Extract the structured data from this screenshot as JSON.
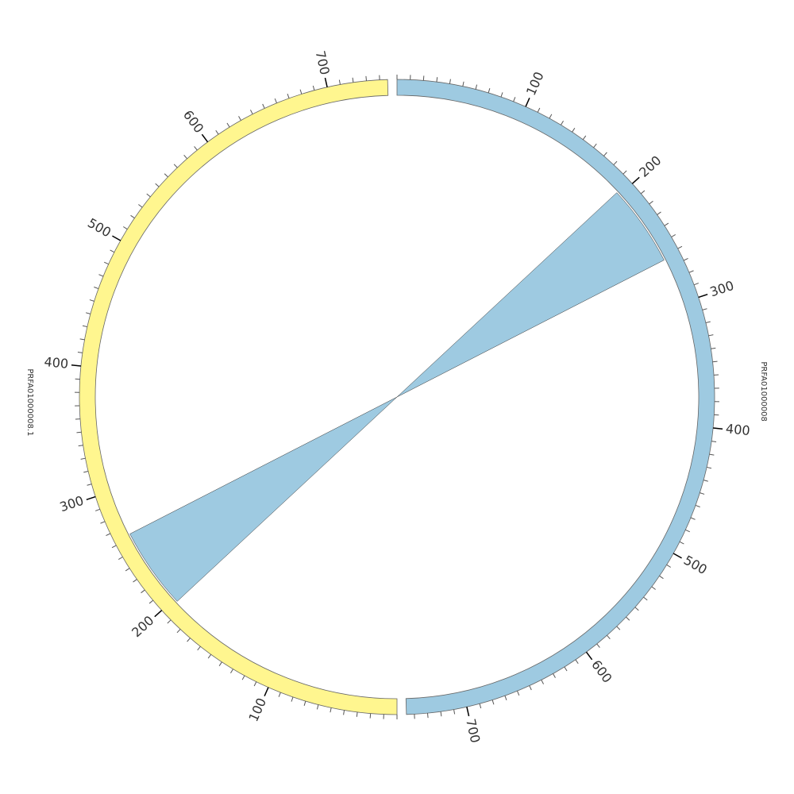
{
  "chart_data": {
    "type": "circos",
    "gap_degrees": 1.7,
    "minor_tick_interval": 10,
    "segments": [
      {
        "name": "PRFA01000008",
        "length": 746,
        "color": "#9ecae1",
        "ticks": [
          100,
          200,
          300,
          400,
          500,
          600,
          700
        ]
      },
      {
        "name": "PRFA01000008.1",
        "length": 746,
        "color": "#fff68f",
        "ticks": [
          100,
          200,
          300,
          400,
          500,
          600,
          700
        ]
      }
    ],
    "links": [
      {
        "color": "#9ecae1",
        "source": {
          "segment": 0,
          "start": 197,
          "end": 263
        },
        "target": {
          "segment": 1,
          "start": 197,
          "end": 263
        }
      }
    ]
  }
}
